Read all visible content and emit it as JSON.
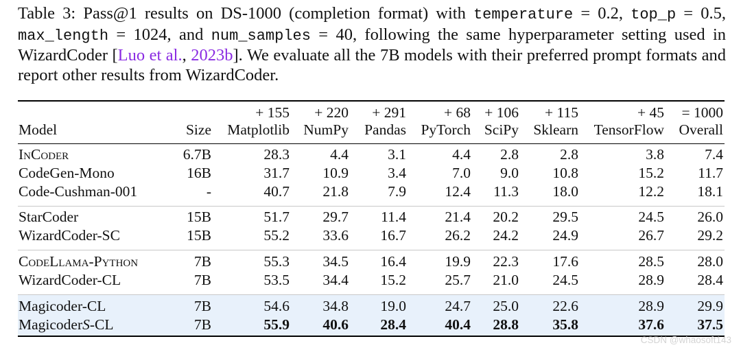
{
  "caption": {
    "label": "Table 3: Pass@1 results on DS-1000 (completion format) with",
    "param1": "temperature",
    "eq1": "= 0.2,",
    "param2": "top_p",
    "eq2": "= 0.5,",
    "param3": "max_length",
    "eq3": "= 1024, and",
    "param4": "num_samples",
    "eq4": "= 40, following the same hyperparameter setting used in WizardCoder [",
    "cite_author": "Luo et al.",
    "cite_sep": ", ",
    "cite_year": "2023b",
    "rest": "]. We evaluate all the 7B models with their preferred prompt formats and report other results from WizardCoder."
  },
  "header": {
    "counts": [
      "+ 155",
      "+ 220",
      "+ 291",
      "+ 68",
      "+ 106",
      "+ 115",
      "+ 45",
      "= 1000"
    ],
    "labels": [
      "Model",
      "Size",
      "Matplotlib",
      "NumPy",
      "Pandas",
      "PyTorch",
      "SciPy",
      "Sklearn",
      "TensorFlow",
      "Overall"
    ]
  },
  "rows": [
    {
      "model": "INCODER",
      "size": "6.7B",
      "vals": [
        "28.3",
        "4.4",
        "3.1",
        "4.4",
        "2.8",
        "2.8",
        "3.8",
        "7.4"
      ]
    },
    {
      "model": "CodeGen-Mono",
      "size": "16B",
      "vals": [
        "31.7",
        "10.9",
        "3.4",
        "7.0",
        "9.0",
        "10.8",
        "15.2",
        "11.7"
      ]
    },
    {
      "model": "Code-Cushman-001",
      "size": "-",
      "vals": [
        "40.7",
        "21.8",
        "7.9",
        "12.4",
        "11.3",
        "18.0",
        "12.2",
        "18.1"
      ]
    },
    {
      "model": "StarCoder",
      "size": "15B",
      "vals": [
        "51.7",
        "29.7",
        "11.4",
        "21.4",
        "20.2",
        "29.5",
        "24.5",
        "26.0"
      ]
    },
    {
      "model": "WizardCoder-SC",
      "size": "15B",
      "vals": [
        "55.2",
        "33.6",
        "16.7",
        "26.2",
        "24.2",
        "24.9",
        "26.7",
        "29.2"
      ]
    },
    {
      "model": "CODELLAMA-PYTHON",
      "size": "7B",
      "vals": [
        "55.3",
        "34.5",
        "16.4",
        "19.9",
        "22.3",
        "17.6",
        "28.5",
        "28.0"
      ]
    },
    {
      "model": "WizardCoder-CL",
      "size": "7B",
      "vals": [
        "53.5",
        "34.4",
        "15.2",
        "25.7",
        "21.0",
        "24.5",
        "28.9",
        "28.4"
      ]
    },
    {
      "model": "Magicoder-CL",
      "size": "7B",
      "vals": [
        "54.6",
        "34.8",
        "19.0",
        "24.7",
        "25.0",
        "22.6",
        "28.9",
        "29.9"
      ]
    },
    {
      "model": "Magicoder",
      "model_s": "S",
      "model_suffix": "-CL",
      "size": "7B",
      "vals": [
        "55.9",
        "40.6",
        "28.4",
        "40.4",
        "28.8",
        "35.8",
        "37.6",
        "37.5"
      ]
    }
  ],
  "watermark": "CSDN @whaosoft143"
}
